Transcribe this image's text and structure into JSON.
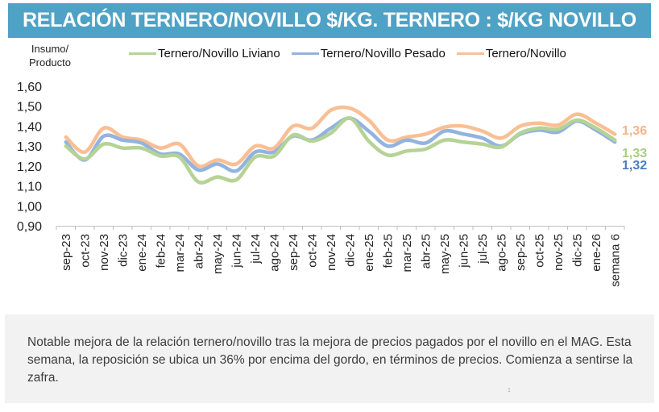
{
  "header": {
    "title": "RELACIÓN TERNERO/NOVILLO $/KG. TERNERO : $/KG NOVILLO"
  },
  "colors": {
    "header_bg": "#4EA2C5",
    "liviano": "#B5D395",
    "pesado": "#93B3DF",
    "total": "#F9BF94",
    "label_total": "#F7B487",
    "label_liviano": "#A8CE86",
    "label_pesado": "#4A7DC9"
  },
  "chart_data": {
    "type": "line",
    "title": "RELACIÓN TERNERO/NOVILLO $/KG. TERNERO : $/KG NOVILLO",
    "ylabel_lines": [
      "Insumo/",
      "Producto"
    ],
    "ylim": [
      0.9,
      1.6
    ],
    "yticks": [
      "1,60",
      "1,50",
      "1,40",
      "1,30",
      "1,20",
      "1,10",
      "1,00",
      "0,90"
    ],
    "ytick_values": [
      1.6,
      1.5,
      1.4,
      1.3,
      1.2,
      1.1,
      1.0,
      0.9
    ],
    "grid": false,
    "legend_position": "top",
    "categories": [
      "sep-23",
      "oct-23",
      "nov-23",
      "dic-23",
      "ene-24",
      "feb-24",
      "mar-24",
      "abr-24",
      "may-24",
      "jun-24",
      "jul-24",
      "ago-24",
      "sep-24",
      "oct-24",
      "nov-24",
      "dic-24",
      "ene-25",
      "feb-25",
      "mar-25",
      "abr-25",
      "may-25",
      "jun-25",
      "jul-25",
      "ago-25",
      "sep-25",
      "oct-25",
      "nov-25",
      "dic-25",
      "ene-26",
      "semana 6"
    ],
    "series": [
      {
        "name": "Ternero/Novillo Liviano",
        "color": "#B5D395",
        "values": [
          1.3,
          1.235,
          1.31,
          1.29,
          1.29,
          1.25,
          1.245,
          1.12,
          1.145,
          1.13,
          1.245,
          1.25,
          1.355,
          1.325,
          1.365,
          1.44,
          1.325,
          1.255,
          1.275,
          1.285,
          1.33,
          1.32,
          1.31,
          1.295,
          1.365,
          1.39,
          1.385,
          1.43,
          1.39,
          1.33
        ],
        "end_label": "1,33"
      },
      {
        "name": "Ternero/Novillo Pesado",
        "color": "#93B3DF",
        "values": [
          1.32,
          1.23,
          1.35,
          1.33,
          1.315,
          1.26,
          1.26,
          1.18,
          1.21,
          1.175,
          1.27,
          1.27,
          1.35,
          1.33,
          1.39,
          1.44,
          1.375,
          1.3,
          1.33,
          1.315,
          1.375,
          1.36,
          1.34,
          1.3,
          1.36,
          1.38,
          1.37,
          1.425,
          1.38,
          1.32
        ],
        "end_label": "1,32"
      },
      {
        "name": "Ternero/Novillo",
        "color": "#F9BF94",
        "values": [
          1.345,
          1.27,
          1.39,
          1.345,
          1.33,
          1.29,
          1.31,
          1.2,
          1.23,
          1.21,
          1.3,
          1.29,
          1.4,
          1.39,
          1.48,
          1.49,
          1.43,
          1.33,
          1.345,
          1.36,
          1.395,
          1.4,
          1.375,
          1.34,
          1.4,
          1.415,
          1.405,
          1.46,
          1.415,
          1.36
        ],
        "end_label": "1,36"
      }
    ]
  },
  "note": {
    "text": "Notable mejora de la relación ternero/novillo tras la mejora de precios pagados por el novillo en el MAG. Esta semana, la reposición se ubica un 36% por encima del gordo, en términos de precios. Comienza a sentirse la zafra.",
    "page_mark": "1"
  }
}
